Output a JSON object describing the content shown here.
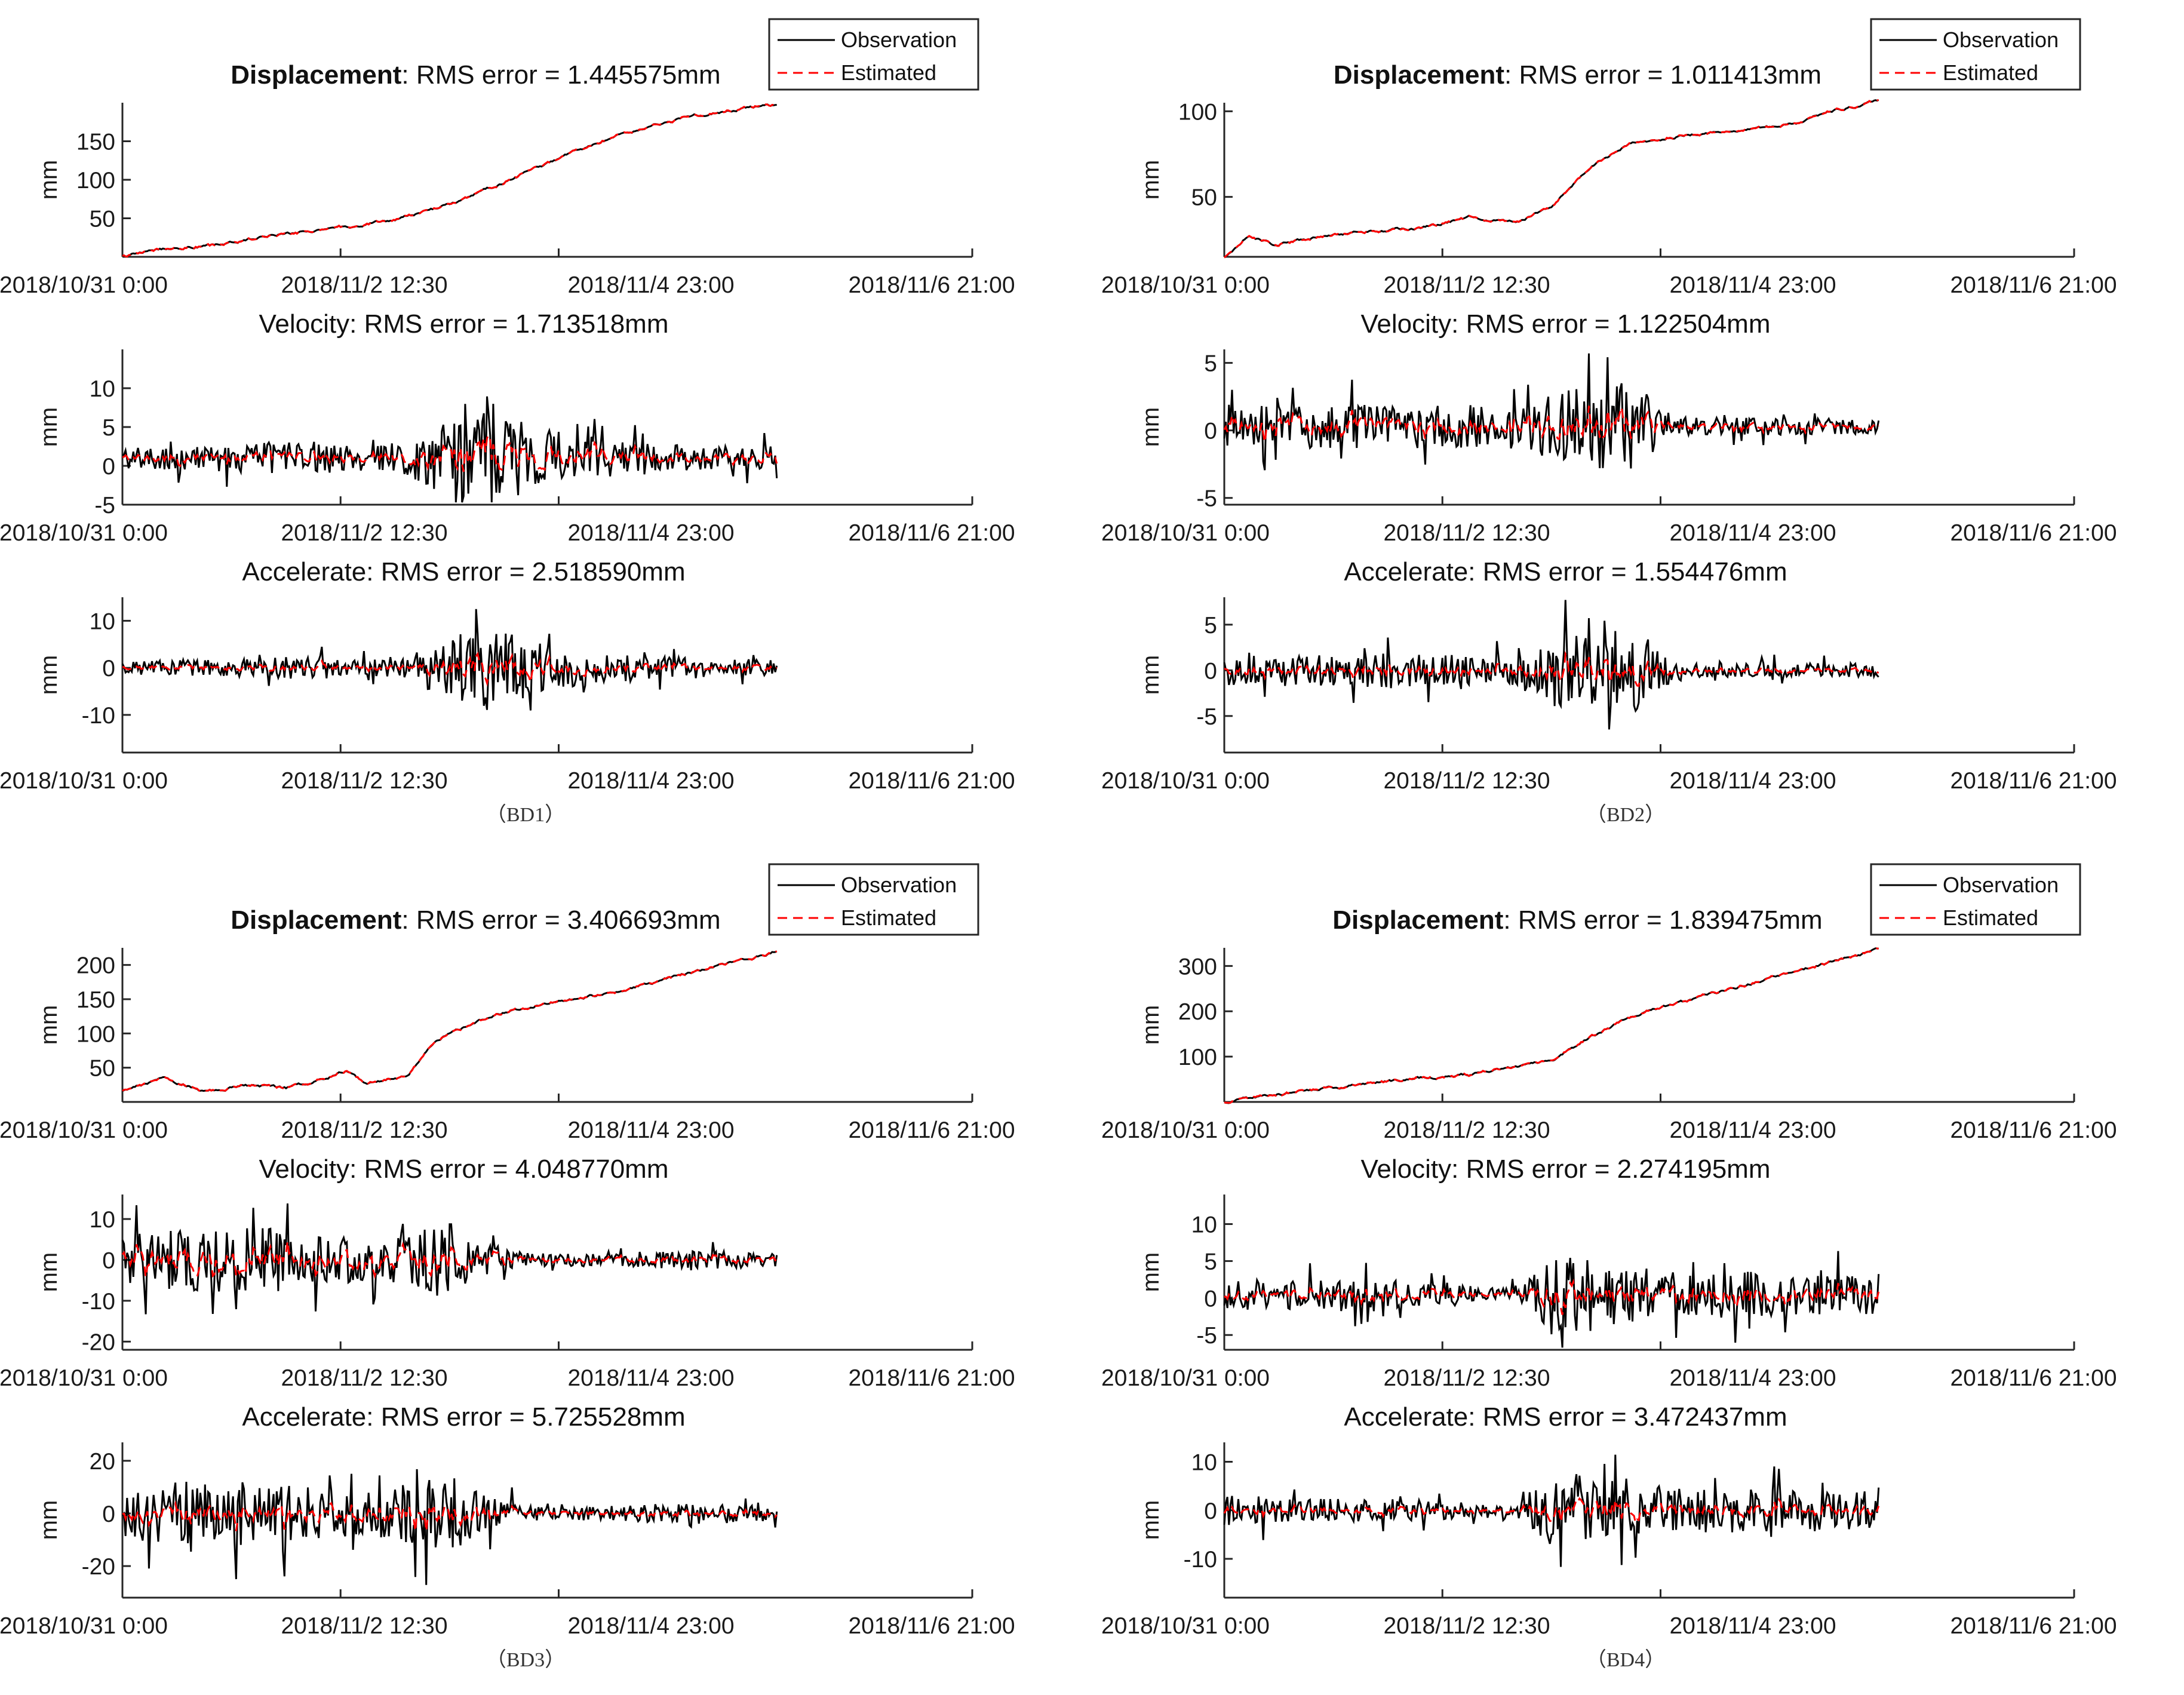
{
  "common": {
    "x_tick_labels": [
      "2018/10/31 0:00",
      "2018/11/2  12:30",
      "2018/11/4 23:00",
      "2018/11/6  21:00"
    ],
    "y_label": "mm",
    "legend": {
      "observation": "Observation",
      "estimated": "Estimated"
    },
    "colors": {
      "observation": "#000000",
      "estimated": "#ff0000"
    }
  },
  "panels": [
    {
      "caption": "（BD1）",
      "displacement": {
        "title_bold": "Displacement",
        "title_rest": ": RMS error = 1.445575mm"
      },
      "velocity": {
        "title": "Velocity: RMS error = 1.713518mm"
      },
      "accelerate": {
        "title": "Accelerate: RMS error = 2.518590mm"
      }
    },
    {
      "caption": "（BD2）",
      "displacement": {
        "title_bold": "Displacement",
        "title_rest": ": RMS error = 1.011413mm"
      },
      "velocity": {
        "title": "Velocity: RMS error = 1.122504mm"
      },
      "accelerate": {
        "title": "Accelerate: RMS error = 1.554476mm"
      }
    },
    {
      "caption": "（BD3）",
      "displacement": {
        "title_bold": "Displacement",
        "title_rest": ": RMS error = 3.406693mm"
      },
      "velocity": {
        "title": "Velocity: RMS error = 4.048770mm"
      },
      "accelerate": {
        "title": "Accelerate: RMS error = 5.725528mm"
      }
    },
    {
      "caption": "（BD4）",
      "displacement": {
        "title_bold": "Displacement",
        "title_rest": ": RMS error = 1.839475mm"
      },
      "velocity": {
        "title": "Velocity: RMS error = 2.274195mm"
      },
      "accelerate": {
        "title": "Accelerate: RMS error = 3.472437mm"
      }
    }
  ],
  "chart_data": [
    {
      "type": "line",
      "panel": "BD1",
      "quantity": "displacement",
      "title": "Displacement: RMS error = 1.445575mm",
      "ylabel": "mm",
      "x_unit": "hours since 2018/10/31 0:00",
      "xlim": [
        0,
        165
      ],
      "ylim": [
        0,
        200
      ],
      "y_ticks": [
        50,
        100,
        150
      ],
      "series": [
        {
          "name": "Observation",
          "x": [
            0,
            8,
            24,
            36,
            48,
            60,
            72,
            80,
            90,
            100,
            110,
            120,
            130,
            140,
            150,
            160
          ],
          "values": [
            0,
            10,
            15,
            28,
            35,
            42,
            55,
            68,
            90,
            112,
            135,
            155,
            170,
            183,
            192,
            197
          ]
        },
        {
          "name": "Estimated",
          "x": [
            0,
            8,
            24,
            36,
            48,
            60,
            72,
            80,
            90,
            100,
            110,
            120,
            130,
            140,
            150,
            160
          ],
          "values": [
            0,
            10,
            15,
            28,
            35,
            42,
            55,
            68,
            90,
            112,
            135,
            155,
            170,
            183,
            192,
            197
          ]
        }
      ]
    },
    {
      "type": "line",
      "panel": "BD1",
      "quantity": "velocity",
      "title": "Velocity: RMS error = 1.713518mm",
      "ylabel": "mm",
      "x_unit": "hours since 2018/10/31 0:00",
      "xlim": [
        0,
        165
      ],
      "ylim": [
        -5,
        15
      ],
      "y_ticks": [
        -5,
        0,
        5,
        10
      ],
      "series": [
        {
          "name": "Observation",
          "amplitude_profile_x": [
            0,
            20,
            40,
            60,
            70,
            80,
            90,
            100,
            110,
            120,
            140,
            160
          ],
          "amplitude_profile": [
            2,
            2,
            3,
            2,
            3,
            6,
            9,
            5,
            4,
            3,
            2,
            2
          ],
          "mean": 1
        },
        {
          "name": "Estimated",
          "amplitude_ratio": 0.6
        }
      ]
    },
    {
      "type": "line",
      "panel": "BD1",
      "quantity": "accelerate",
      "title": "Accelerate: RMS error = 2.518590mm",
      "ylabel": "mm",
      "x_unit": "hours since 2018/10/31 0:00",
      "xlim": [
        0,
        165
      ],
      "ylim": [
        -18,
        15
      ],
      "y_ticks": [
        -10,
        0,
        10
      ],
      "series": [
        {
          "name": "Observation",
          "amplitude_profile_x": [
            0,
            20,
            40,
            60,
            70,
            80,
            90,
            100,
            110,
            120,
            140,
            160
          ],
          "amplitude_profile": [
            2,
            2,
            3,
            2,
            4,
            8,
            13,
            7,
            5,
            4,
            3,
            2
          ],
          "mean": 0
        },
        {
          "name": "Estimated",
          "amplitude_ratio": 0.5
        }
      ]
    },
    {
      "type": "line",
      "panel": "BD2",
      "quantity": "displacement",
      "title": "Displacement: RMS error = 1.011413mm",
      "ylabel": "mm",
      "x_unit": "hours since 2018/10/31 0:00",
      "xlim": [
        0,
        165
      ],
      "ylim": [
        15,
        105
      ],
      "y_ticks": [
        50,
        100
      ],
      "series": [
        {
          "name": "Observation",
          "x": [
            0,
            6,
            12,
            24,
            36,
            48,
            60,
            72,
            80,
            90,
            100,
            110,
            120,
            130,
            140,
            150,
            160
          ],
          "values": [
            15,
            28,
            22,
            27,
            30,
            32,
            38,
            35,
            45,
            68,
            82,
            85,
            88,
            90,
            93,
            101,
            106
          ]
        },
        {
          "name": "Estimated",
          "x": [
            0,
            6,
            12,
            24,
            36,
            48,
            60,
            72,
            80,
            90,
            100,
            110,
            120,
            130,
            140,
            150,
            160
          ],
          "values": [
            15,
            28,
            22,
            27,
            30,
            32,
            38,
            35,
            45,
            68,
            82,
            85,
            88,
            90,
            93,
            101,
            106
          ]
        }
      ]
    },
    {
      "type": "line",
      "panel": "BD2",
      "quantity": "velocity",
      "title": "Velocity: RMS error = 1.122504mm",
      "ylabel": "mm",
      "x_unit": "hours since 2018/10/31 0:00",
      "xlim": [
        0,
        165
      ],
      "ylim": [
        -5.5,
        6
      ],
      "y_ticks": [
        -5,
        0,
        5
      ],
      "series": [
        {
          "name": "Observation",
          "amplitude_profile_x": [
            0,
            20,
            40,
            60,
            70,
            80,
            90,
            100,
            110,
            120,
            140,
            160
          ],
          "amplitude_profile": [
            2,
            2,
            2,
            2,
            1.5,
            3,
            4,
            4,
            1,
            0.8,
            0.8,
            0.7
          ],
          "mean": 0.3
        },
        {
          "name": "Estimated",
          "amplitude_ratio": 0.6
        }
      ]
    },
    {
      "type": "line",
      "panel": "BD2",
      "quantity": "accelerate",
      "title": "Accelerate: RMS error = 1.554476mm",
      "ylabel": "mm",
      "x_unit": "hours since 2018/10/31 0:00",
      "xlim": [
        0,
        165
      ],
      "ylim": [
        -9,
        8
      ],
      "y_ticks": [
        -5,
        0,
        5
      ],
      "series": [
        {
          "name": "Observation",
          "amplitude_profile_x": [
            0,
            20,
            40,
            60,
            70,
            80,
            90,
            100,
            110,
            120,
            140,
            160
          ],
          "amplitude_profile": [
            2,
            2,
            2.5,
            2,
            2,
            5,
            5,
            6,
            1.5,
            1,
            1,
            1
          ],
          "mean": 0
        },
        {
          "name": "Estimated",
          "amplitude_ratio": 0.5
        }
      ]
    },
    {
      "type": "line",
      "panel": "BD3",
      "quantity": "displacement",
      "title": "Displacement: RMS error = 3.406693mm",
      "ylabel": "mm",
      "x_unit": "hours since 2018/10/31 0:00",
      "xlim": [
        0,
        165
      ],
      "ylim": [
        0,
        225
      ],
      "y_ticks": [
        50,
        100,
        150,
        200
      ],
      "series": [
        {
          "name": "Observation",
          "x": [
            0,
            10,
            20,
            30,
            40,
            50,
            55,
            60,
            70,
            75,
            80,
            90,
            100,
            110,
            120,
            130,
            140,
            150,
            160
          ],
          "values": [
            15,
            35,
            15,
            25,
            20,
            35,
            45,
            25,
            40,
            80,
            100,
            125,
            140,
            150,
            160,
            175,
            190,
            205,
            220
          ]
        },
        {
          "name": "Estimated",
          "x": [
            0,
            10,
            20,
            30,
            40,
            50,
            55,
            60,
            70,
            75,
            80,
            90,
            100,
            110,
            120,
            130,
            140,
            150,
            160
          ],
          "values": [
            15,
            35,
            15,
            25,
            20,
            35,
            45,
            25,
            40,
            80,
            100,
            125,
            140,
            150,
            160,
            175,
            190,
            205,
            220
          ]
        }
      ]
    },
    {
      "type": "line",
      "panel": "BD3",
      "quantity": "velocity",
      "title": "Velocity: RMS error = 4.048770mm",
      "ylabel": "mm",
      "x_unit": "hours since 2018/10/31 0:00",
      "xlim": [
        0,
        165
      ],
      "ylim": [
        -22,
        16
      ],
      "y_ticks": [
        -20,
        -10,
        0,
        10
      ],
      "series": [
        {
          "name": "Observation",
          "amplitude_profile_x": [
            0,
            20,
            40,
            60,
            70,
            80,
            90,
            100,
            110,
            120,
            140,
            160
          ],
          "amplitude_profile": [
            8,
            10,
            10,
            6,
            9,
            12,
            5,
            2,
            2,
            2,
            3,
            2
          ],
          "mean": 0
        },
        {
          "name": "Estimated",
          "amplitude_ratio": 0.6
        }
      ]
    },
    {
      "type": "line",
      "panel": "BD3",
      "quantity": "accelerate",
      "title": "Accelerate: RMS error = 5.725528mm",
      "ylabel": "mm",
      "x_unit": "hours since 2018/10/31 0:00",
      "xlim": [
        0,
        165
      ],
      "ylim": [
        -32,
        27
      ],
      "y_ticks": [
        -20,
        0,
        20
      ],
      "series": [
        {
          "name": "Observation",
          "amplitude_profile_x": [
            0,
            20,
            40,
            60,
            70,
            80,
            90,
            100,
            110,
            120,
            140,
            160
          ],
          "amplitude_profile": [
            12,
            16,
            14,
            10,
            14,
            18,
            8,
            4,
            3,
            4,
            5,
            4
          ],
          "mean": 0
        },
        {
          "name": "Estimated",
          "amplitude_ratio": 0.5
        }
      ]
    },
    {
      "type": "line",
      "panel": "BD4",
      "quantity": "displacement",
      "title": "Displacement: RMS error = 1.839475mm",
      "ylabel": "mm",
      "x_unit": "hours since 2018/10/31 0:00",
      "xlim": [
        0,
        165
      ],
      "ylim": [
        0,
        340
      ],
      "y_ticks": [
        100,
        200,
        300
      ],
      "series": [
        {
          "name": "Observation",
          "x": [
            0,
            20,
            40,
            60,
            70,
            80,
            90,
            100,
            120,
            140,
            160
          ],
          "values": [
            0,
            25,
            45,
            62,
            75,
            90,
            145,
            190,
            240,
            290,
            335
          ]
        },
        {
          "name": "Estimated",
          "x": [
            0,
            20,
            40,
            60,
            70,
            80,
            90,
            100,
            120,
            140,
            160
          ],
          "values": [
            0,
            25,
            45,
            62,
            75,
            90,
            145,
            190,
            240,
            290,
            335
          ]
        }
      ]
    },
    {
      "type": "line",
      "panel": "BD4",
      "quantity": "velocity",
      "title": "Velocity: RMS error = 2.274195mm",
      "ylabel": "mm",
      "x_unit": "hours since 2018/10/31 0:00",
      "xlim": [
        0,
        165
      ],
      "ylim": [
        -7,
        14
      ],
      "y_ticks": [
        -5,
        0,
        5,
        10
      ],
      "series": [
        {
          "name": "Observation",
          "amplitude_profile_x": [
            0,
            20,
            40,
            60,
            70,
            80,
            90,
            100,
            110,
            120,
            140,
            160
          ],
          "amplitude_profile": [
            3,
            2.5,
            2.5,
            1.5,
            1,
            6,
            7,
            5,
            4,
            4,
            3.5,
            3.5
          ],
          "mean": 0.5
        },
        {
          "name": "Estimated",
          "amplitude_ratio": 0.55
        }
      ]
    },
    {
      "type": "line",
      "panel": "BD4",
      "quantity": "accelerate",
      "title": "Accelerate: RMS error = 3.472437mm",
      "ylabel": "mm",
      "x_unit": "hours since 2018/10/31 0:00",
      "xlim": [
        0,
        165
      ],
      "ylim": [
        -18,
        14
      ],
      "y_ticks": [
        -10,
        0,
        10
      ],
      "series": [
        {
          "name": "Observation",
          "amplitude_profile_x": [
            0,
            20,
            40,
            60,
            70,
            80,
            90,
            100,
            110,
            120,
            140,
            160
          ],
          "amplitude_profile": [
            4,
            3,
            3,
            2,
            1,
            9,
            10,
            8,
            6,
            6,
            5,
            5
          ],
          "mean": 0
        },
        {
          "name": "Estimated",
          "amplitude_ratio": 0.45
        }
      ]
    }
  ]
}
